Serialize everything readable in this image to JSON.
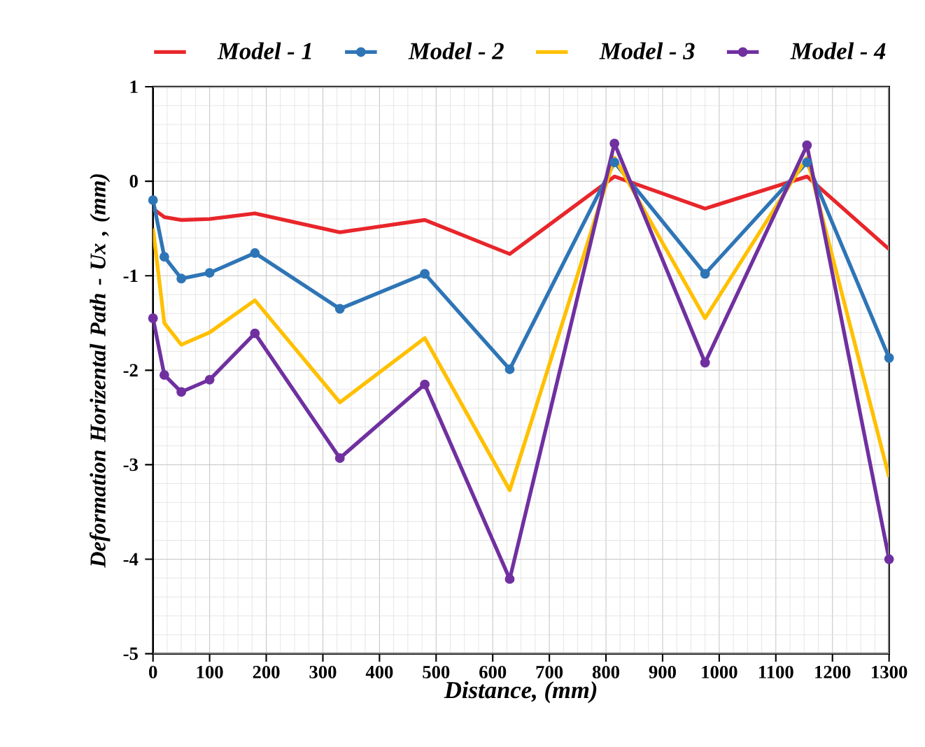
{
  "chart_data": {
    "type": "line",
    "xlabel": "Distance, (mm)",
    "ylabel": "Deformation Horizental Path - Ux , (mm)",
    "x": [
      0,
      20,
      50,
      100,
      180,
      330,
      480,
      630,
      815,
      975,
      1155,
      1300
    ],
    "series": [
      {
        "name": "Model - 1",
        "color": "#e8262b",
        "marker": "none",
        "values": [
          -0.29,
          -0.38,
          -0.41,
          -0.4,
          -0.34,
          -0.54,
          -0.41,
          -0.77,
          0.05,
          -0.29,
          0.05,
          -0.72
        ]
      },
      {
        "name": "Model - 2",
        "color": "#2e75b6",
        "marker": "circle",
        "values": [
          -0.2,
          -0.8,
          -1.03,
          -0.97,
          -0.76,
          -1.35,
          -0.98,
          -1.99,
          0.2,
          -0.98,
          0.2,
          -1.87
        ]
      },
      {
        "name": "Model - 3",
        "color": "#ffc000",
        "marker": "none",
        "values": [
          -0.5,
          -1.5,
          -1.73,
          -1.6,
          -1.26,
          -2.34,
          -1.66,
          -3.27,
          0.25,
          -1.45,
          0.25,
          -3.13
        ]
      },
      {
        "name": "Model - 4",
        "color": "#7030a0",
        "marker": "circle",
        "values": [
          -1.45,
          -2.05,
          -2.23,
          -2.1,
          -1.61,
          -2.93,
          -2.15,
          -4.21,
          0.4,
          -1.92,
          0.38,
          -4.0
        ]
      }
    ],
    "xlim": [
      0,
      1300
    ],
    "ylim": [
      -5,
      1
    ],
    "xticks": [
      0,
      100,
      200,
      300,
      400,
      500,
      600,
      700,
      800,
      900,
      1000,
      1100,
      1200,
      1300
    ],
    "yticks": [
      -5,
      -4,
      -3,
      -2,
      -1,
      0,
      1
    ],
    "grid": true,
    "legend": "top",
    "line_style": "solid"
  }
}
